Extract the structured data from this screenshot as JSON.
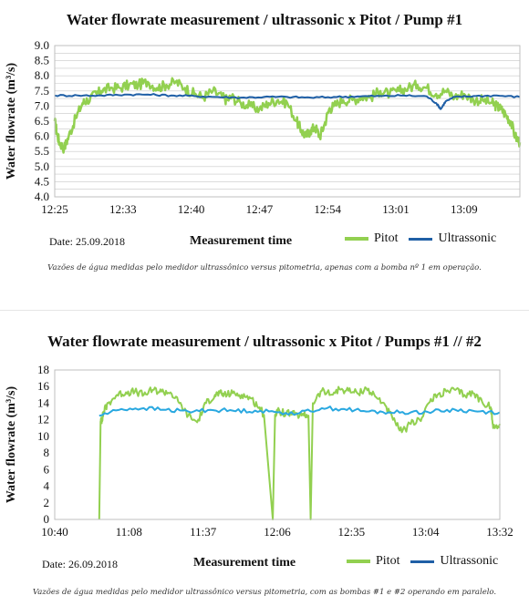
{
  "chart_data": [
    {
      "type": "line",
      "title": "Water flowrate measurement / ultrassonic x Pitot / Pump  #1",
      "ylabel": "Water flowrate (m³/s)",
      "xlabel": "Measurement time",
      "date_label": "Date: 25.09.2018",
      "caption": "Vazões de água medidas pelo medidor ultrassônico versus pitometria, apenas com a bomba nº 1 em operação.",
      "ylim": [
        4.0,
        9.0
      ],
      "yticks": [
        "4.0",
        "4.5",
        "5.0",
        "5.5",
        "6.0",
        "6.5",
        "7.0",
        "7.5",
        "8.0",
        "8.5",
        "9.0"
      ],
      "xticks": [
        "12:25",
        "12:33",
        "12:40",
        "12:47",
        "12:54",
        "13:01",
        "13:09"
      ],
      "grid": true,
      "legend": "bottom-right",
      "series": [
        {
          "name": "Pitot",
          "color": "#92d050",
          "x": [
            0,
            0.005,
            0.01,
            0.02,
            0.03,
            0.045,
            0.06,
            0.07,
            0.09,
            0.1,
            0.12,
            0.14,
            0.16,
            0.18,
            0.2,
            0.22,
            0.24,
            0.26,
            0.28,
            0.3,
            0.32,
            0.34,
            0.36,
            0.37,
            0.38,
            0.4,
            0.42,
            0.44,
            0.46,
            0.48,
            0.5,
            0.52,
            0.53,
            0.54,
            0.55,
            0.56,
            0.57,
            0.58,
            0.59,
            0.6,
            0.62,
            0.64,
            0.66,
            0.68,
            0.7,
            0.72,
            0.74,
            0.76,
            0.78,
            0.8,
            0.82,
            0.84,
            0.86,
            0.88,
            0.9,
            0.92,
            0.94,
            0.95,
            0.96,
            0.97,
            0.98,
            0.99,
            1.0
          ],
          "y": [
            6.5,
            6.1,
            5.8,
            5.6,
            6.0,
            6.6,
            7.1,
            7.2,
            7.4,
            7.5,
            7.6,
            7.6,
            7.7,
            7.7,
            7.8,
            7.6,
            7.7,
            7.8,
            7.6,
            7.4,
            7.3,
            7.5,
            7.3,
            7.2,
            7.3,
            7.1,
            7.0,
            6.9,
            7.1,
            7.2,
            7.1,
            6.5,
            6.2,
            6.0,
            6.2,
            6.3,
            6.0,
            6.4,
            6.9,
            7.0,
            7.2,
            7.2,
            7.3,
            7.3,
            7.5,
            7.4,
            7.5,
            7.6,
            7.7,
            7.6,
            7.4,
            7.5,
            7.3,
            7.4,
            7.2,
            7.2,
            7.1,
            7.0,
            6.9,
            6.7,
            6.5,
            6.0,
            5.8
          ],
          "line_width": 2.5
        },
        {
          "name": "Ultrassonic",
          "color": "#1f5fa6",
          "x": [
            0,
            0.05,
            0.1,
            0.15,
            0.2,
            0.25,
            0.3,
            0.35,
            0.4,
            0.45,
            0.5,
            0.55,
            0.6,
            0.65,
            0.7,
            0.75,
            0.8,
            0.82,
            0.83,
            0.84,
            0.86,
            0.9,
            0.95,
            1.0
          ],
          "y": [
            7.35,
            7.35,
            7.35,
            7.38,
            7.38,
            7.35,
            7.33,
            7.3,
            7.28,
            7.3,
            7.3,
            7.28,
            7.3,
            7.32,
            7.33,
            7.35,
            7.32,
            7.1,
            6.9,
            7.15,
            7.3,
            7.33,
            7.35,
            7.3
          ],
          "line_width": 2
        }
      ]
    },
    {
      "type": "line",
      "title": "Water flowrate measurement / ultrassonic  x Pitot /  Pumps #1 // #2",
      "ylabel": "Water flowrate (m³/s)",
      "xlabel": "Measurement time",
      "date_label": "Date: 26.09.2018",
      "caption": "Vazões de água medidas pelo medidor ultrassônico versus pitometria, com as bombas #1 e #2 operando em paralelo.",
      "ylim": [
        0,
        18
      ],
      "yticks": [
        "0",
        "2",
        "4",
        "6",
        "8",
        "10",
        "12",
        "14",
        "16",
        "18"
      ],
      "xticks": [
        "10:40",
        "11:08",
        "11:37",
        "12:06",
        "12:35",
        "13:04",
        "13:32"
      ],
      "grid": false,
      "legend": "bottom-right",
      "series": [
        {
          "name": "Pitot",
          "color": "#92d050",
          "x": [
            0.1,
            0.103,
            0.106,
            0.108,
            0.11,
            0.12,
            0.14,
            0.16,
            0.18,
            0.2,
            0.22,
            0.24,
            0.26,
            0.28,
            0.3,
            0.32,
            0.34,
            0.36,
            0.37,
            0.38,
            0.4,
            0.42,
            0.44,
            0.46,
            0.47,
            0.49,
            0.495,
            0.5,
            0.52,
            0.54,
            0.56,
            0.57,
            0.575,
            0.58,
            0.6,
            0.62,
            0.64,
            0.66,
            0.68,
            0.7,
            0.72,
            0.74,
            0.76,
            0.78,
            0.8,
            0.82,
            0.84,
            0.86,
            0.88,
            0.9,
            0.92,
            0.94,
            0.96,
            0.98,
            0.985,
            1.0
          ],
          "y": [
            0,
            11.8,
            12.0,
            12.5,
            13.0,
            14.0,
            15.0,
            15.3,
            15.4,
            15.0,
            15.6,
            15.4,
            15.3,
            14.0,
            12.5,
            11.7,
            14.0,
            15.0,
            15.2,
            15.0,
            15.2,
            15.0,
            14.6,
            13.5,
            12.6,
            0,
            12.6,
            13.0,
            12.8,
            12.6,
            12.5,
            12.5,
            0,
            14.0,
            15.5,
            15.0,
            15.7,
            15.5,
            15.2,
            15.8,
            14.8,
            14.0,
            12.0,
            10.5,
            11.5,
            12.0,
            14.0,
            15.0,
            15.4,
            15.6,
            15.0,
            15.2,
            14.2,
            13.5,
            11.0,
            11.5
          ],
          "line_width": 2
        },
        {
          "name": "Ultrassonic",
          "color": "#29a8e0",
          "x": [
            0.1,
            0.15,
            0.2,
            0.25,
            0.3,
            0.35,
            0.4,
            0.45,
            0.5,
            0.55,
            0.6,
            0.65,
            0.7,
            0.75,
            0.8,
            0.85,
            0.9,
            0.95,
            1.0
          ],
          "y": [
            12.5,
            13.3,
            13.4,
            13.2,
            13.0,
            13.2,
            13.1,
            13.1,
            12.9,
            12.8,
            13.4,
            13.3,
            13.0,
            12.9,
            12.9,
            13.0,
            13.2,
            13.0,
            12.9
          ],
          "line_width": 2
        }
      ]
    }
  ]
}
